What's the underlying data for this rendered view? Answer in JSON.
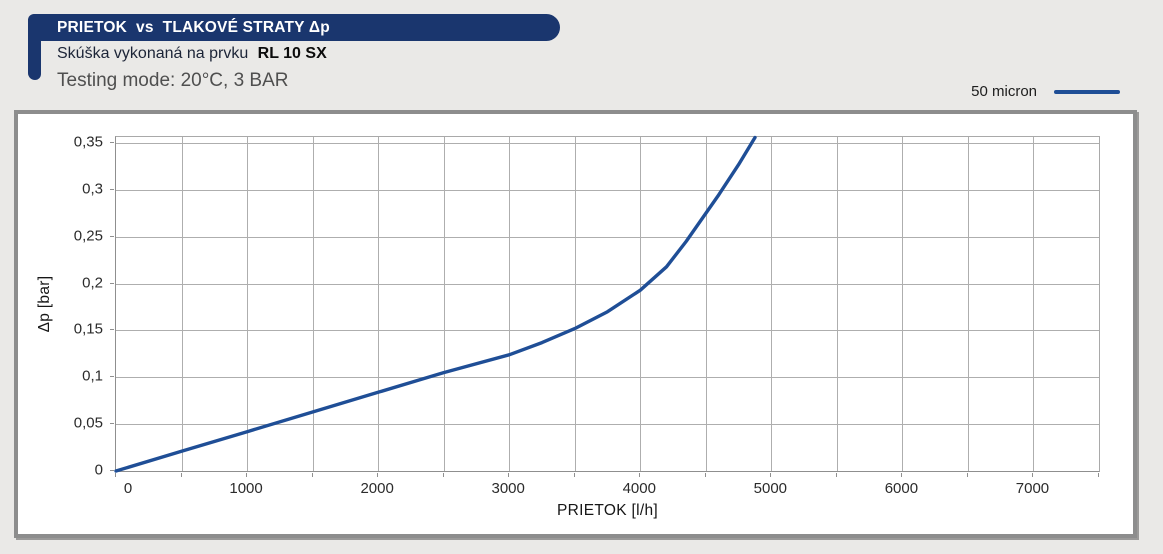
{
  "header": {
    "title_part1": "PRIETOK",
    "title_vs": "vs",
    "title_part2": "TLAKOVÉ STRATY Δp",
    "subtitle_prefix": "Skúška vykonaná na prvku",
    "subtitle_model": "RL 10 SX",
    "testing_mode": "Testing mode: 20°C, 3 BAR"
  },
  "legend": {
    "label": "50 micron",
    "line_color": "#1f4e96"
  },
  "colors": {
    "accent_navy": "#1a366e",
    "curve_blue": "#1f4e96",
    "page_background": "#eae9e7",
    "panel_border_gray": "#8d8d8d",
    "gridline_gray": "#aeaeae"
  },
  "chart_data": {
    "type": "line",
    "title": "PRIETOK vs TLAKOVÉ STRATY Δp",
    "xlabel": "PRIETOK [l/h]",
    "ylabel": "Δp [bar]",
    "xlim": [
      0,
      7500
    ],
    "ylim": [
      0,
      0.3565
    ],
    "x_tick_values": [
      0,
      1000,
      2000,
      3000,
      4000,
      5000,
      6000,
      7000
    ],
    "x_tick_labels": [
      "0",
      "1000",
      "2000",
      "3000",
      "4000",
      "5000",
      "6000",
      "7000"
    ],
    "y_tick_values": [
      0,
      0.05,
      0.1,
      0.15,
      0.2,
      0.25,
      0.3,
      0.35
    ],
    "y_tick_labels": [
      "0",
      "0,05",
      "0,1",
      "0,15",
      "0,2",
      "0,25",
      "0,3",
      "0,35"
    ],
    "x_grid_step": 500,
    "y_grid_step": 0.05,
    "grid": true,
    "legend_position": "top-right",
    "series": [
      {
        "name": "50 micron",
        "color": "#1f4e96",
        "x": [
          0,
          500,
          1000,
          1500,
          2000,
          2500,
          3000,
          3250,
          3500,
          3750,
          4000,
          4200,
          4350,
          4600,
          4750,
          4875
        ],
        "y": [
          0,
          0.021,
          0.042,
          0.063,
          0.084,
          0.105,
          0.124,
          0.137,
          0.152,
          0.17,
          0.193,
          0.218,
          0.245,
          0.295,
          0.327,
          0.356
        ]
      }
    ]
  }
}
